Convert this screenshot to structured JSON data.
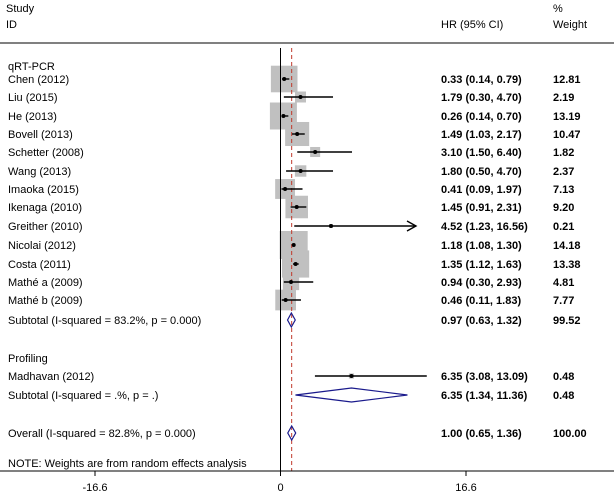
{
  "chart_data": {
    "type": "forest",
    "headers": {
      "study": [
        "Study",
        "ID"
      ],
      "effect": "HR (95% CI)",
      "weight": [
        "%",
        "Weight"
      ]
    },
    "null_value": 0,
    "overall_effect": 1.0,
    "xlim": [
      -16.6,
      16.6
    ],
    "xticks": [
      -16.6,
      0,
      16.6
    ],
    "tick_labels": [
      "-16.6",
      "0",
      "16.6"
    ],
    "groups": [
      {
        "name": "qRT-PCR",
        "studies": [
          {
            "label": "Chen  (2012)",
            "hr": 0.33,
            "lo": 0.14,
            "hi": 0.79,
            "ci_text": "0.33 (0.14, 0.79)",
            "weight": 12.81,
            "weight_text": "12.81"
          },
          {
            "label": "Liu  (2015)",
            "hr": 1.79,
            "lo": 0.3,
            "hi": 4.7,
            "ci_text": "1.79 (0.30, 4.70)",
            "weight": 2.19,
            "weight_text": "2.19"
          },
          {
            "label": "He  (2013)",
            "hr": 0.26,
            "lo": 0.14,
            "hi": 0.7,
            "ci_text": "0.26 (0.14, 0.70)",
            "weight": 13.19,
            "weight_text": "13.19"
          },
          {
            "label": "Bovell  (2013)",
            "hr": 1.49,
            "lo": 1.03,
            "hi": 2.17,
            "ci_text": "1.49 (1.03, 2.17)",
            "weight": 10.47,
            "weight_text": "10.47"
          },
          {
            "label": "Schetter  (2008)",
            "hr": 3.1,
            "lo": 1.5,
            "hi": 6.4,
            "ci_text": "3.10 (1.50, 6.40)",
            "weight": 1.82,
            "weight_text": "1.82"
          },
          {
            "label": "Wang  (2013)",
            "hr": 1.8,
            "lo": 0.5,
            "hi": 4.7,
            "ci_text": "1.80 (0.50, 4.70)",
            "weight": 2.37,
            "weight_text": "2.37"
          },
          {
            "label": "Imaoka  (2015)",
            "hr": 0.41,
            "lo": 0.09,
            "hi": 1.97,
            "ci_text": "0.41 (0.09, 1.97)",
            "weight": 7.13,
            "weight_text": "7.13"
          },
          {
            "label": "Ikenaga  (2010)",
            "hr": 1.45,
            "lo": 0.91,
            "hi": 2.31,
            "ci_text": "1.45 (0.91, 2.31)",
            "weight": 9.2,
            "weight_text": "9.20"
          },
          {
            "label": "Greither  (2010)",
            "hr": 4.52,
            "lo": 1.23,
            "hi": 16.56,
            "ci_text": "4.52 (1.23, 16.56)",
            "weight": 0.21,
            "weight_text": "0.21",
            "arrow": true
          },
          {
            "label": "Nicolai  (2012)",
            "hr": 1.18,
            "lo": 1.08,
            "hi": 1.3,
            "ci_text": "1.18 (1.08, 1.30)",
            "weight": 14.18,
            "weight_text": "14.18"
          },
          {
            "label": "Costa  (2011)",
            "hr": 1.35,
            "lo": 1.12,
            "hi": 1.63,
            "ci_text": "1.35 (1.12, 1.63)",
            "weight": 13.38,
            "weight_text": "13.38"
          },
          {
            "label": "Mathé a  (2009)",
            "hr": 0.94,
            "lo": 0.3,
            "hi": 2.93,
            "ci_text": "0.94 (0.30, 2.93)",
            "weight": 4.81,
            "weight_text": "4.81"
          },
          {
            "label": "Mathé b  (2009)",
            "hr": 0.46,
            "lo": 0.11,
            "hi": 1.83,
            "ci_text": "0.46 (0.11, 1.83)",
            "weight": 7.77,
            "weight_text": "7.77"
          }
        ],
        "subtotal": {
          "label": "Subtotal  (I-squared = 83.2%, p = 0.000)",
          "hr": 0.97,
          "lo": 0.63,
          "hi": 1.32,
          "ci_text": "0.97 (0.63, 1.32)",
          "weight_text": "99.52"
        }
      },
      {
        "name": "Profiling",
        "studies": [
          {
            "label": "Madhavan  (2012)",
            "hr": 6.35,
            "lo": 3.08,
            "hi": 13.09,
            "ci_text": "6.35 (3.08, 13.09)",
            "weight": 0.48,
            "weight_text": "0.48"
          }
        ],
        "subtotal": {
          "label": "Subtotal  (I-squared = .%, p = .)",
          "hr": 6.35,
          "lo": 1.34,
          "hi": 11.36,
          "ci_text": "6.35 (1.34, 11.36)",
          "weight_text": "0.48"
        }
      }
    ],
    "overall": {
      "label": "Overall  (I-squared = 82.8%, p = 0.000)",
      "hr": 1.0,
      "lo": 0.65,
      "hi": 1.36,
      "ci_text": "1.00 (0.65, 1.36)",
      "weight_text": "100.00"
    },
    "note": "NOTE: Weights are from random effects analysis",
    "colors": {
      "box": "#c0c0c0",
      "line": "#000000",
      "diamond": "#1a1a8c",
      "ref_line": "#c0392b",
      "separator": "#000000"
    }
  }
}
